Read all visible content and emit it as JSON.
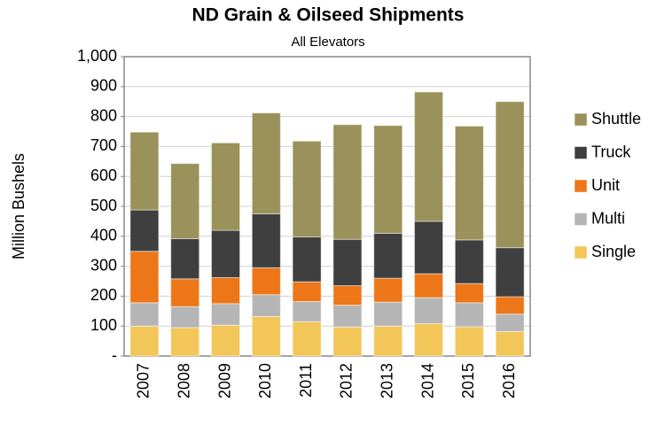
{
  "chart_data": {
    "type": "bar",
    "stacked": true,
    "title": "ND Grain & Oilseed Shipments",
    "subtitle": "All Elevators",
    "y_label": "Million Bushels",
    "categories": [
      "2007",
      "2008",
      "2009",
      "2010",
      "2011",
      "2012",
      "2013",
      "2014",
      "2015",
      "2016"
    ],
    "series": [
      {
        "name": "Single",
        "color": "#f3c65a",
        "values": [
          100,
          95,
          103,
          132,
          115,
          97,
          100,
          108,
          98,
          82
        ]
      },
      {
        "name": "Multi",
        "color": "#b5b5b5",
        "values": [
          78,
          70,
          72,
          73,
          67,
          73,
          80,
          87,
          80,
          58
        ]
      },
      {
        "name": "Unit",
        "color": "#ec7618",
        "values": [
          172,
          93,
          87,
          90,
          66,
          65,
          80,
          80,
          64,
          58
        ]
      },
      {
        "name": "Truck",
        "color": "#3f3f3f",
        "values": [
          138,
          134,
          158,
          180,
          150,
          155,
          150,
          175,
          146,
          164
        ]
      },
      {
        "name": "Shuttle",
        "color": "#9b915a",
        "values": [
          260,
          251,
          292,
          337,
          320,
          383,
          360,
          432,
          380,
          488
        ]
      }
    ],
    "ylim": [
      0,
      1000
    ],
    "yticks": [
      {
        "value": 0,
        "label": "-"
      },
      100,
      200,
      300,
      400,
      500,
      600,
      700,
      800,
      900,
      {
        "value": 1000,
        "label": "1,000"
      }
    ],
    "grid": true,
    "legend": "right"
  }
}
